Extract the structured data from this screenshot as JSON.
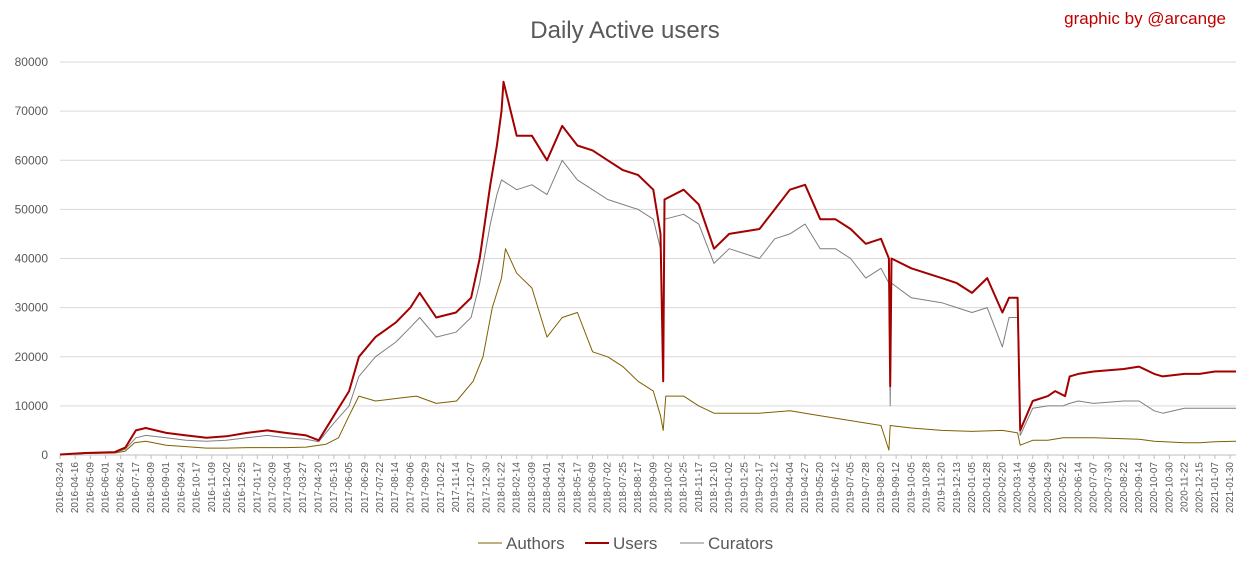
{
  "chart_data": {
    "type": "line",
    "title": "Daily Active users",
    "credit": "graphic by @arcange",
    "xlabel": "",
    "ylabel": "",
    "ylim": [
      0,
      80000
    ],
    "yticks": [
      0,
      10000,
      20000,
      30000,
      40000,
      50000,
      60000,
      70000,
      80000
    ],
    "xlim": [
      "2016-03-24",
      "2021-02-08"
    ],
    "xticks": [
      "2016-03-24",
      "2016-04-16",
      "2016-05-09",
      "2016-06-01",
      "2016-06-24",
      "2016-07-17",
      "2016-08-09",
      "2016-09-01",
      "2016-09-24",
      "2016-10-17",
      "2016-11-09",
      "2016-12-02",
      "2016-12-25",
      "2017-01-17",
      "2017-02-09",
      "2017-03-04",
      "2017-03-27",
      "2017-04-20",
      "2017-05-13",
      "2017-06-05",
      "2017-06-29",
      "2017-07-22",
      "2017-08-14",
      "2017-09-06",
      "2017-09-29",
      "2017-10-22",
      "2017-11-14",
      "2017-12-07",
      "2017-12-30",
      "2018-01-22",
      "2018-02-14",
      "2018-03-09",
      "2018-04-01",
      "2018-04-24",
      "2018-05-17",
      "2018-06-09",
      "2018-07-02",
      "2018-07-25",
      "2018-08-17",
      "2018-09-09",
      "2018-10-02",
      "2018-10-25",
      "2018-11-17",
      "2018-12-10",
      "2019-01-02",
      "2019-01-25",
      "2019-02-17",
      "2019-03-12",
      "2019-04-04",
      "2019-04-27",
      "2019-05-20",
      "2019-06-12",
      "2019-07-05",
      "2019-07-28",
      "2019-08-20",
      "2019-09-12",
      "2019-10-05",
      "2019-10-28",
      "2019-11-20",
      "2019-12-13",
      "2020-01-05",
      "2020-01-28",
      "2020-02-20",
      "2020-03-14",
      "2020-04-06",
      "2020-04-29",
      "2020-05-22",
      "2020-06-14",
      "2020-07-07",
      "2020-07-30",
      "2020-08-22",
      "2020-09-14",
      "2020-10-07",
      "2020-10-30",
      "2020-11-22",
      "2020-12-15",
      "2021-01-07",
      "2021-01-30"
    ],
    "legend_position": "bottom",
    "grid": true,
    "series": [
      {
        "name": "Authors",
        "color": "#7f6000",
        "points": [
          [
            "2016-03-24",
            100
          ],
          [
            "2016-05-01",
            300
          ],
          [
            "2016-06-15",
            400
          ],
          [
            "2016-07-01",
            800
          ],
          [
            "2016-07-15",
            2500
          ],
          [
            "2016-08-01",
            2800
          ],
          [
            "2016-09-01",
            2000
          ],
          [
            "2016-10-01",
            1700
          ],
          [
            "2016-11-01",
            1400
          ],
          [
            "2016-12-01",
            1400
          ],
          [
            "2017-01-01",
            1500
          ],
          [
            "2017-02-01",
            1500
          ],
          [
            "2017-03-01",
            1500
          ],
          [
            "2017-04-01",
            1600
          ],
          [
            "2017-05-01",
            2200
          ],
          [
            "2017-05-20",
            3500
          ],
          [
            "2017-06-05",
            8000
          ],
          [
            "2017-06-20",
            12000
          ],
          [
            "2017-07-15",
            11000
          ],
          [
            "2017-08-15",
            11500
          ],
          [
            "2017-09-15",
            12000
          ],
          [
            "2017-10-15",
            10500
          ],
          [
            "2017-11-15",
            11000
          ],
          [
            "2017-12-10",
            15000
          ],
          [
            "2017-12-25",
            20000
          ],
          [
            "2018-01-08",
            30000
          ],
          [
            "2018-01-22",
            36000
          ],
          [
            "2018-01-28",
            42000
          ],
          [
            "2018-02-14",
            37000
          ],
          [
            "2018-03-09",
            34000
          ],
          [
            "2018-04-01",
            24000
          ],
          [
            "2018-04-24",
            28000
          ],
          [
            "2018-05-17",
            29000
          ],
          [
            "2018-06-09",
            21000
          ],
          [
            "2018-07-02",
            20000
          ],
          [
            "2018-07-25",
            18000
          ],
          [
            "2018-08-17",
            15000
          ],
          [
            "2018-09-09",
            13000
          ],
          [
            "2018-09-20",
            8000
          ],
          [
            "2018-09-24",
            5000
          ],
          [
            "2018-09-28",
            12000
          ],
          [
            "2018-10-25",
            12000
          ],
          [
            "2018-11-17",
            10000
          ],
          [
            "2018-12-10",
            8500
          ],
          [
            "2019-01-02",
            8500
          ],
          [
            "2019-02-17",
            8500
          ],
          [
            "2019-04-04",
            9000
          ],
          [
            "2019-05-20",
            8000
          ],
          [
            "2019-07-05",
            7000
          ],
          [
            "2019-08-20",
            6000
          ],
          [
            "2019-09-01",
            1000
          ],
          [
            "2019-09-03",
            6000
          ],
          [
            "2019-10-05",
            5500
          ],
          [
            "2019-11-20",
            5000
          ],
          [
            "2020-01-05",
            4800
          ],
          [
            "2020-02-20",
            5000
          ],
          [
            "2020-03-14",
            4500
          ],
          [
            "2020-03-18",
            2000
          ],
          [
            "2020-04-06",
            3000
          ],
          [
            "2020-04-29",
            3000
          ],
          [
            "2020-05-22",
            3500
          ],
          [
            "2020-07-07",
            3500
          ],
          [
            "2020-09-14",
            3200
          ],
          [
            "2020-10-07",
            2800
          ],
          [
            "2020-11-22",
            2500
          ],
          [
            "2020-12-15",
            2500
          ],
          [
            "2021-01-07",
            2700
          ],
          [
            "2021-02-08",
            2800
          ]
        ]
      },
      {
        "name": "Users",
        "color": "#a30000",
        "points": [
          [
            "2016-03-24",
            100
          ],
          [
            "2016-05-01",
            400
          ],
          [
            "2016-06-15",
            600
          ],
          [
            "2016-07-01",
            1500
          ],
          [
            "2016-07-17",
            5000
          ],
          [
            "2016-08-01",
            5500
          ],
          [
            "2016-09-01",
            4500
          ],
          [
            "2016-10-01",
            4000
          ],
          [
            "2016-11-01",
            3500
          ],
          [
            "2016-12-01",
            3800
          ],
          [
            "2017-01-01",
            4500
          ],
          [
            "2017-02-01",
            5000
          ],
          [
            "2017-03-01",
            4500
          ],
          [
            "2017-04-01",
            4000
          ],
          [
            "2017-04-20",
            3000
          ],
          [
            "2017-05-13",
            8000
          ],
          [
            "2017-06-05",
            13000
          ],
          [
            "2017-06-20",
            20000
          ],
          [
            "2017-07-15",
            24000
          ],
          [
            "2017-08-15",
            27000
          ],
          [
            "2017-09-06",
            30000
          ],
          [
            "2017-09-20",
            33000
          ],
          [
            "2017-10-15",
            28000
          ],
          [
            "2017-11-14",
            29000
          ],
          [
            "2017-12-07",
            32000
          ],
          [
            "2017-12-20",
            40000
          ],
          [
            "2018-01-05",
            55000
          ],
          [
            "2018-01-15",
            63000
          ],
          [
            "2018-01-22",
            70000
          ],
          [
            "2018-01-25",
            76000
          ],
          [
            "2018-02-14",
            65000
          ],
          [
            "2018-03-09",
            65000
          ],
          [
            "2018-04-01",
            60000
          ],
          [
            "2018-04-24",
            67000
          ],
          [
            "2018-05-17",
            63000
          ],
          [
            "2018-06-09",
            62000
          ],
          [
            "2018-07-02",
            60000
          ],
          [
            "2018-07-25",
            58000
          ],
          [
            "2018-08-17",
            57000
          ],
          [
            "2018-09-09",
            54000
          ],
          [
            "2018-09-20",
            45000
          ],
          [
            "2018-09-24",
            15000
          ],
          [
            "2018-09-26",
            52000
          ],
          [
            "2018-10-25",
            54000
          ],
          [
            "2018-11-17",
            51000
          ],
          [
            "2018-12-10",
            42000
          ],
          [
            "2019-01-02",
            45000
          ],
          [
            "2019-02-17",
            46000
          ],
          [
            "2019-03-12",
            50000
          ],
          [
            "2019-04-04",
            54000
          ],
          [
            "2019-04-27",
            55000
          ],
          [
            "2019-05-20",
            48000
          ],
          [
            "2019-06-12",
            48000
          ],
          [
            "2019-07-05",
            46000
          ],
          [
            "2019-07-28",
            43000
          ],
          [
            "2019-08-20",
            44000
          ],
          [
            "2019-09-01",
            40000
          ],
          [
            "2019-09-03",
            14000
          ],
          [
            "2019-09-05",
            40000
          ],
          [
            "2019-10-05",
            38000
          ],
          [
            "2019-11-20",
            36000
          ],
          [
            "2019-12-13",
            35000
          ],
          [
            "2020-01-05",
            33000
          ],
          [
            "2020-01-28",
            36000
          ],
          [
            "2020-02-20",
            29000
          ],
          [
            "2020-03-01",
            32000
          ],
          [
            "2020-03-14",
            32000
          ],
          [
            "2020-03-18",
            5000
          ],
          [
            "2020-04-06",
            11000
          ],
          [
            "2020-04-29",
            12000
          ],
          [
            "2020-05-10",
            13000
          ],
          [
            "2020-05-25",
            12000
          ],
          [
            "2020-06-01",
            16000
          ],
          [
            "2020-06-14",
            16500
          ],
          [
            "2020-07-07",
            17000
          ],
          [
            "2020-08-22",
            17500
          ],
          [
            "2020-09-14",
            18000
          ],
          [
            "2020-10-07",
            16500
          ],
          [
            "2020-10-20",
            16000
          ],
          [
            "2020-11-22",
            16500
          ],
          [
            "2020-12-15",
            16500
          ],
          [
            "2021-01-07",
            17000
          ],
          [
            "2021-02-08",
            17000
          ]
        ]
      },
      {
        "name": "Curators",
        "color": "#7f7f7f",
        "points": [
          [
            "2016-03-24",
            100
          ],
          [
            "2016-05-01",
            300
          ],
          [
            "2016-06-15",
            500
          ],
          [
            "2016-07-01",
            1200
          ],
          [
            "2016-07-17",
            3500
          ],
          [
            "2016-08-01",
            4000
          ],
          [
            "2016-09-01",
            3500
          ],
          [
            "2016-10-01",
            3000
          ],
          [
            "2016-11-01",
            2800
          ],
          [
            "2016-12-01",
            3000
          ],
          [
            "2017-01-01",
            3500
          ],
          [
            "2017-02-01",
            4000
          ],
          [
            "2017-03-01",
            3500
          ],
          [
            "2017-04-01",
            3200
          ],
          [
            "2017-04-20",
            2700
          ],
          [
            "2017-05-13",
            6500
          ],
          [
            "2017-06-05",
            10000
          ],
          [
            "2017-06-20",
            16000
          ],
          [
            "2017-07-15",
            20000
          ],
          [
            "2017-08-15",
            23000
          ],
          [
            "2017-09-06",
            26000
          ],
          [
            "2017-09-20",
            28000
          ],
          [
            "2017-10-15",
            24000
          ],
          [
            "2017-11-14",
            25000
          ],
          [
            "2017-12-07",
            28000
          ],
          [
            "2017-12-20",
            35000
          ],
          [
            "2018-01-05",
            47000
          ],
          [
            "2018-01-15",
            53000
          ],
          [
            "2018-01-22",
            56000
          ],
          [
            "2018-02-14",
            54000
          ],
          [
            "2018-03-09",
            55000
          ],
          [
            "2018-04-01",
            53000
          ],
          [
            "2018-04-24",
            60000
          ],
          [
            "2018-05-17",
            56000
          ],
          [
            "2018-06-09",
            54000
          ],
          [
            "2018-07-02",
            52000
          ],
          [
            "2018-07-25",
            51000
          ],
          [
            "2018-08-17",
            50000
          ],
          [
            "2018-09-09",
            48000
          ],
          [
            "2018-09-20",
            42000
          ],
          [
            "2018-09-24",
            17000
          ],
          [
            "2018-09-26",
            48000
          ],
          [
            "2018-10-25",
            49000
          ],
          [
            "2018-11-17",
            47000
          ],
          [
            "2018-12-10",
            39000
          ],
          [
            "2019-01-02",
            42000
          ],
          [
            "2019-02-17",
            40000
          ],
          [
            "2019-03-12",
            44000
          ],
          [
            "2019-04-04",
            45000
          ],
          [
            "2019-04-27",
            47000
          ],
          [
            "2019-05-20",
            42000
          ],
          [
            "2019-06-12",
            42000
          ],
          [
            "2019-07-05",
            40000
          ],
          [
            "2019-07-28",
            36000
          ],
          [
            "2019-08-20",
            38000
          ],
          [
            "2019-09-01",
            35000
          ],
          [
            "2019-09-03",
            10000
          ],
          [
            "2019-09-05",
            35000
          ],
          [
            "2019-10-05",
            32000
          ],
          [
            "2019-11-20",
            31000
          ],
          [
            "2019-12-13",
            30000
          ],
          [
            "2020-01-05",
            29000
          ],
          [
            "2020-01-28",
            30000
          ],
          [
            "2020-02-20",
            22000
          ],
          [
            "2020-03-01",
            28000
          ],
          [
            "2020-03-14",
            28000
          ],
          [
            "2020-03-18",
            4000
          ],
          [
            "2020-04-06",
            9500
          ],
          [
            "2020-04-29",
            10000
          ],
          [
            "2020-05-22",
            10000
          ],
          [
            "2020-06-01",
            10500
          ],
          [
            "2020-06-14",
            11000
          ],
          [
            "2020-07-07",
            10500
          ],
          [
            "2020-08-22",
            11000
          ],
          [
            "2020-09-14",
            11000
          ],
          [
            "2020-10-07",
            9000
          ],
          [
            "2020-10-20",
            8500
          ],
          [
            "2020-11-22",
            9500
          ],
          [
            "2020-12-15",
            9500
          ],
          [
            "2021-01-07",
            9500
          ],
          [
            "2021-02-08",
            9500
          ]
        ]
      }
    ]
  }
}
